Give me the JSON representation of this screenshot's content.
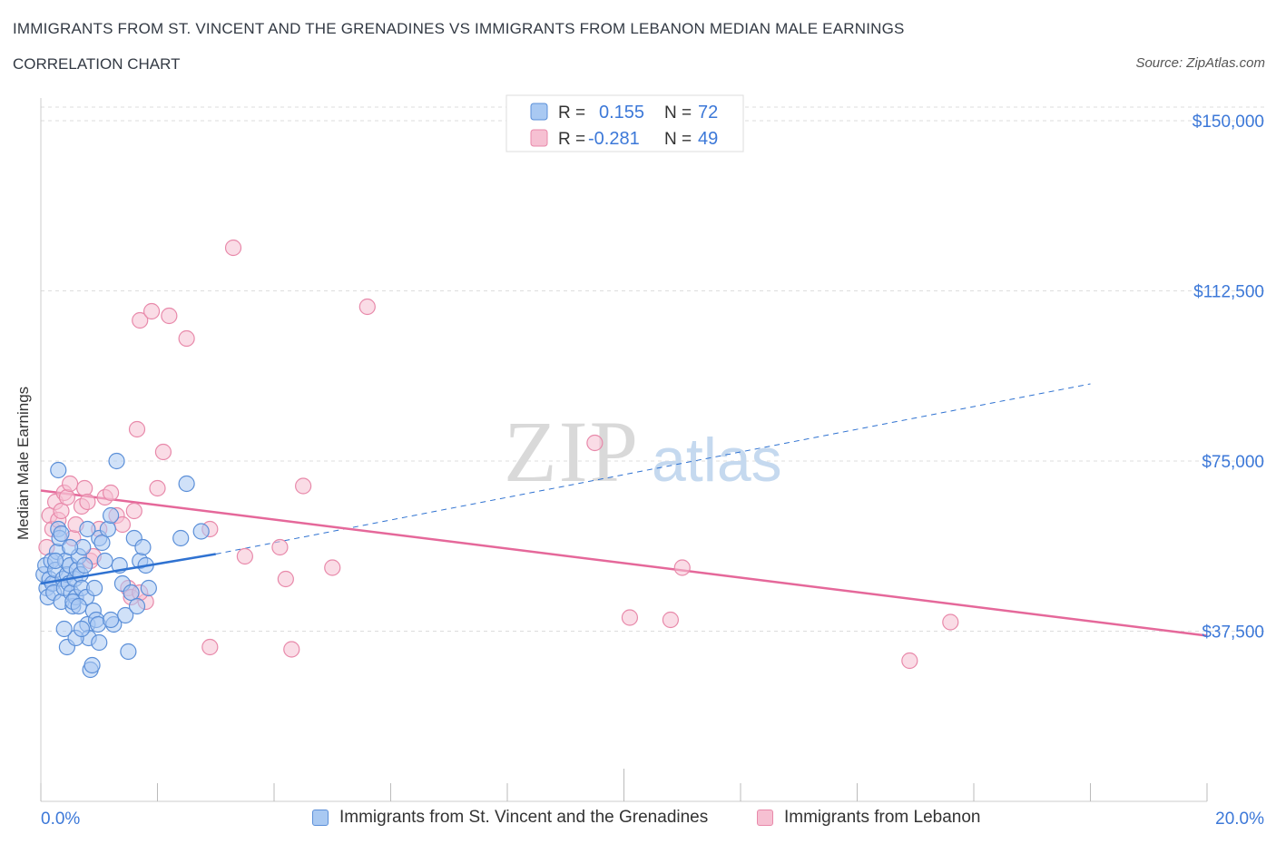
{
  "header": {
    "title": "IMMIGRANTS FROM ST. VINCENT AND THE GRENADINES VS IMMIGRANTS FROM LEBANON MEDIAN MALE EARNINGS",
    "subtitle": "CORRELATION CHART",
    "source": "Source: ZipAtlas.com"
  },
  "colors": {
    "blue_fill": "#a9c9f2",
    "blue_stroke": "#5b8fd8",
    "blue_line": "#2f72d1",
    "pink_fill": "#f6c0d2",
    "pink_stroke": "#e889aa",
    "pink_line": "#e5689a",
    "axis_text": "#3c78d8"
  },
  "legend_top": {
    "r_label": "R =",
    "n_label": "N =",
    "series1": {
      "r": "0.155",
      "n": "72"
    },
    "series2": {
      "r": "-0.281",
      "n": "49"
    }
  },
  "chart_data": {
    "type": "scatter",
    "title": "IMMIGRANTS FROM ST. VINCENT AND THE GRENADINES VS IMMIGRANTS FROM LEBANON MEDIAN MALE EARNINGS",
    "xlabel": "",
    "ylabel": "Median Male Earnings",
    "xlim": [
      0,
      20
    ],
    "ylim": [
      0,
      150000
    ],
    "x_tick_labels": [
      "0.0%",
      "20.0%"
    ],
    "y_ticks": [
      37500,
      75000,
      112500,
      150000
    ],
    "y_tick_labels": [
      "$37,500",
      "$75,000",
      "$112,500",
      "$150,000"
    ],
    "grid": true,
    "legend": "top-center",
    "watermark": {
      "zip": "ZIP",
      "atlas": "atlas"
    },
    "series": [
      {
        "name": "Immigrants from St. Vincent and the Grenadines",
        "color": "#5b8fd8",
        "r": 0.155,
        "n": 72,
        "trend": {
          "x0": 0.0,
          "y0": 48000,
          "x1": 3.0,
          "y1": 54500,
          "dash_x1": 18.0,
          "dash_y1": 92000
        },
        "points": [
          [
            0.05,
            50000
          ],
          [
            0.08,
            52000
          ],
          [
            0.1,
            47000
          ],
          [
            0.12,
            45000
          ],
          [
            0.15,
            49000
          ],
          [
            0.18,
            53000
          ],
          [
            0.2,
            48000
          ],
          [
            0.22,
            46000
          ],
          [
            0.25,
            51000
          ],
          [
            0.28,
            55000
          ],
          [
            0.3,
            60000
          ],
          [
            0.32,
            58000
          ],
          [
            0.35,
            44000
          ],
          [
            0.38,
            49000
          ],
          [
            0.4,
            47000
          ],
          [
            0.42,
            53000
          ],
          [
            0.45,
            50000
          ],
          [
            0.48,
            48000
          ],
          [
            0.5,
            52000
          ],
          [
            0.52,
            46000
          ],
          [
            0.55,
            43000
          ],
          [
            0.58,
            49000
          ],
          [
            0.6,
            45000
          ],
          [
            0.62,
            51000
          ],
          [
            0.65,
            54000
          ],
          [
            0.68,
            50000
          ],
          [
            0.7,
            47000
          ],
          [
            0.72,
            56000
          ],
          [
            0.75,
            52000
          ],
          [
            0.78,
            45000
          ],
          [
            0.8,
            39000
          ],
          [
            0.82,
            36000
          ],
          [
            0.85,
            29000
          ],
          [
            0.88,
            30000
          ],
          [
            0.9,
            42000
          ],
          [
            0.92,
            47000
          ],
          [
            0.95,
            40000
          ],
          [
            0.98,
            39000
          ],
          [
            1.0,
            58000
          ],
          [
            1.05,
            57000
          ],
          [
            1.1,
            53000
          ],
          [
            1.15,
            60000
          ],
          [
            1.2,
            63000
          ],
          [
            1.25,
            39000
          ],
          [
            1.3,
            75000
          ],
          [
            1.35,
            52000
          ],
          [
            1.4,
            48000
          ],
          [
            1.45,
            41000
          ],
          [
            1.5,
            33000
          ],
          [
            1.55,
            46000
          ],
          [
            1.6,
            58000
          ],
          [
            1.65,
            43000
          ],
          [
            1.7,
            53000
          ],
          [
            1.75,
            56000
          ],
          [
            1.8,
            52000
          ],
          [
            1.85,
            47000
          ],
          [
            2.4,
            58000
          ],
          [
            2.5,
            70000
          ],
          [
            2.75,
            59500
          ],
          [
            0.3,
            73000
          ],
          [
            0.35,
            59000
          ],
          [
            0.45,
            34000
          ],
          [
            0.6,
            36000
          ],
          [
            0.7,
            38000
          ],
          [
            0.55,
            44000
          ],
          [
            0.65,
            43000
          ],
          [
            1.0,
            35000
          ],
          [
            1.2,
            40000
          ],
          [
            0.4,
            38000
          ],
          [
            0.8,
            60000
          ],
          [
            0.5,
            56000
          ],
          [
            0.25,
            53000
          ]
        ]
      },
      {
        "name": "Immigrants from Lebanon",
        "color": "#e889aa",
        "r": -0.281,
        "n": 49,
        "trend": {
          "x0": 0.0,
          "y0": 68500,
          "x1": 20.0,
          "y1": 36500
        },
        "points": [
          [
            0.1,
            56000
          ],
          [
            0.15,
            63000
          ],
          [
            0.2,
            60000
          ],
          [
            0.25,
            66000
          ],
          [
            0.3,
            62000
          ],
          [
            0.35,
            64000
          ],
          [
            0.4,
            68000
          ],
          [
            0.45,
            67000
          ],
          [
            0.5,
            70000
          ],
          [
            0.55,
            58000
          ],
          [
            0.6,
            61000
          ],
          [
            0.7,
            65000
          ],
          [
            0.75,
            69000
          ],
          [
            0.8,
            66000
          ],
          [
            0.85,
            53000
          ],
          [
            0.9,
            54000
          ],
          [
            1.0,
            60000
          ],
          [
            1.1,
            67000
          ],
          [
            1.2,
            68000
          ],
          [
            1.3,
            63000
          ],
          [
            1.4,
            61000
          ],
          [
            1.5,
            47000
          ],
          [
            1.55,
            45000
          ],
          [
            1.6,
            64000
          ],
          [
            1.65,
            82000
          ],
          [
            1.7,
            106000
          ],
          [
            1.9,
            108000
          ],
          [
            2.0,
            69000
          ],
          [
            2.1,
            77000
          ],
          [
            2.2,
            107000
          ],
          [
            2.5,
            102000
          ],
          [
            2.9,
            60000
          ],
          [
            3.3,
            122000
          ],
          [
            3.5,
            54000
          ],
          [
            4.1,
            56000
          ],
          [
            4.2,
            49000
          ],
          [
            4.3,
            33500
          ],
          [
            4.5,
            69500
          ],
          [
            5.0,
            51500
          ],
          [
            5.6,
            109000
          ],
          [
            9.5,
            79000
          ],
          [
            10.1,
            40500
          ],
          [
            10.8,
            40000
          ],
          [
            11.0,
            51500
          ],
          [
            14.9,
            31000
          ],
          [
            15.6,
            39500
          ],
          [
            2.9,
            34000
          ],
          [
            1.8,
            44000
          ],
          [
            1.7,
            46000
          ]
        ]
      }
    ]
  },
  "bottom_legend": {
    "series1_label": "Immigrants from St. Vincent and the Grenadines",
    "series2_label": "Immigrants from Lebanon"
  }
}
